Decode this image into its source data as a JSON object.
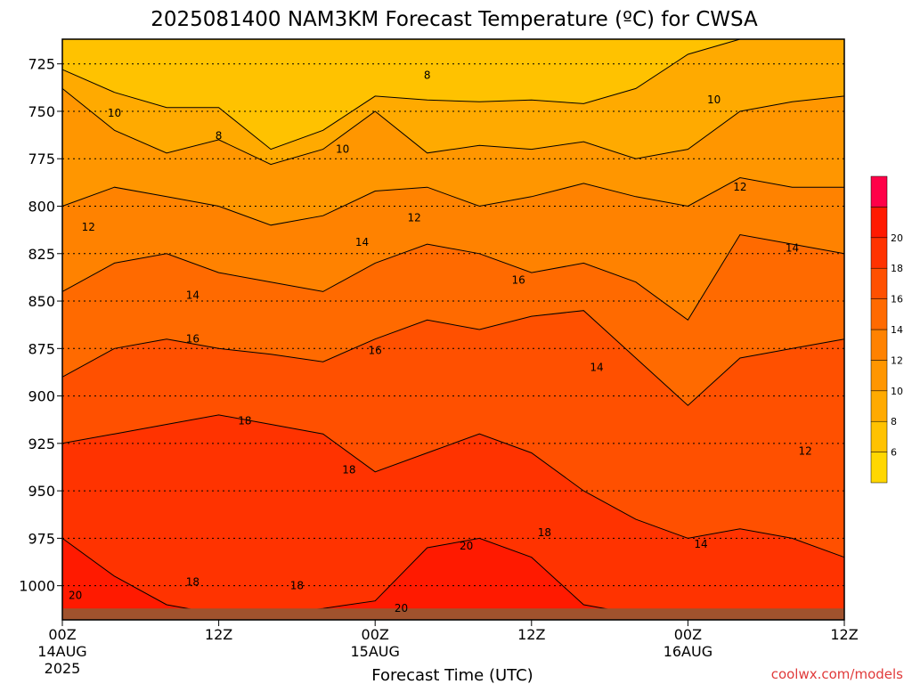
{
  "chart_data": {
    "type": "heatmap",
    "title": "2025081400 NAM3KM Forecast Temperature (ºC) for CWSA",
    "xlabel": "Forecast Time (UTC)",
    "ylabel": "",
    "credit": "coolwx.com/models",
    "y_axis": {
      "ticks": [
        725,
        750,
        775,
        800,
        825,
        850,
        875,
        900,
        925,
        950,
        975,
        1000
      ],
      "range": [
        712,
        1018
      ],
      "reversed": true,
      "grid": true
    },
    "x_axis": {
      "range": [
        0,
        60
      ],
      "tick_hours": [
        0,
        12,
        24,
        36,
        48,
        60
      ],
      "tick_labels": [
        "00Z",
        "12Z",
        "00Z",
        "12Z",
        "00Z",
        "12Z"
      ],
      "date_labels": [
        {
          "hour": 0,
          "lines": [
            "14AUG",
            "2025"
          ]
        },
        {
          "hour": 24,
          "lines": [
            "15AUG"
          ]
        },
        {
          "hour": 48,
          "lines": [
            "16AUG"
          ]
        }
      ]
    },
    "colorbar": {
      "levels": [
        4,
        6,
        8,
        10,
        12,
        14,
        16,
        18,
        20,
        22
      ],
      "labels": [
        6,
        8,
        10,
        12,
        14,
        16,
        18,
        20
      ],
      "colors": [
        "#ffd700",
        "#ffc200",
        "#ffaa00",
        "#ff9600",
        "#ff8200",
        "#ff6a00",
        "#ff5000",
        "#ff3300",
        "#ff1a00",
        "#ff0048"
      ]
    },
    "contours": [
      {
        "value": 8,
        "y": [
          728,
          740,
          748,
          748,
          770,
          760,
          742,
          744,
          745,
          744,
          746,
          738,
          720,
          712,
          712,
          712
        ]
      },
      {
        "value": 10,
        "y": [
          738,
          760,
          772,
          765,
          778,
          770,
          750,
          772,
          768,
          770,
          766,
          775,
          770,
          750,
          745,
          742
        ]
      },
      {
        "value": 12,
        "y": [
          800,
          790,
          795,
          800,
          810,
          805,
          792,
          790,
          800,
          795,
          788,
          795,
          800,
          785,
          790,
          790
        ]
      },
      {
        "value": 14,
        "y": [
          845,
          830,
          825,
          835,
          840,
          845,
          830,
          820,
          825,
          835,
          830,
          840,
          860,
          815,
          820,
          825
        ]
      },
      {
        "value": 16,
        "y": [
          890,
          875,
          870,
          875,
          878,
          882,
          870,
          860,
          865,
          858,
          855,
          880,
          905,
          880,
          875,
          870
        ]
      },
      {
        "value": 18,
        "y": [
          925,
          920,
          915,
          910,
          915,
          920,
          940,
          930,
          920,
          930,
          950,
          965,
          975,
          970,
          975,
          985
        ]
      },
      {
        "value": 20,
        "y": [
          975,
          995,
          1010,
          1015,
          1015,
          1012,
          1008,
          980,
          975,
          985,
          1010,
          1015,
          1015,
          1015,
          1015,
          1015
        ]
      }
    ],
    "contour_labels": [
      {
        "text": "8",
        "hour": 12.0,
        "p": 763
      },
      {
        "text": "8",
        "hour": 28.0,
        "p": 731
      },
      {
        "text": "10",
        "hour": 4.0,
        "p": 751
      },
      {
        "text": "10",
        "hour": 21.5,
        "p": 770
      },
      {
        "text": "10",
        "hour": 50.0,
        "p": 744
      },
      {
        "text": "12",
        "hour": 2.0,
        "p": 811
      },
      {
        "text": "12",
        "hour": 27.0,
        "p": 806
      },
      {
        "text": "12",
        "hour": 52.0,
        "p": 790
      },
      {
        "text": "12",
        "hour": 57.0,
        "p": 929
      },
      {
        "text": "14",
        "hour": 23.0,
        "p": 819
      },
      {
        "text": "14",
        "hour": 10.0,
        "p": 847
      },
      {
        "text": "14",
        "hour": 41.0,
        "p": 885
      },
      {
        "text": "14",
        "hour": 49.0,
        "p": 978
      },
      {
        "text": "14",
        "hour": 56.0,
        "p": 822
      },
      {
        "text": "16",
        "hour": 10.0,
        "p": 870
      },
      {
        "text": "16",
        "hour": 24.0,
        "p": 876
      },
      {
        "text": "16",
        "hour": 35.0,
        "p": 839
      },
      {
        "text": "18",
        "hour": 14.0,
        "p": 913
      },
      {
        "text": "18",
        "hour": 22.0,
        "p": 939
      },
      {
        "text": "18",
        "hour": 37.0,
        "p": 972
      },
      {
        "text": "18",
        "hour": 18.0,
        "p": 1000
      },
      {
        "text": "18",
        "hour": 10.0,
        "p": 998
      },
      {
        "text": "20",
        "hour": 31.0,
        "p": 979
      },
      {
        "text": "20",
        "hour": 26.0,
        "p": 1012
      },
      {
        "text": "20",
        "hour": 1.0,
        "p": 1005
      }
    ],
    "ground": {
      "color": "#a0522d"
    }
  }
}
